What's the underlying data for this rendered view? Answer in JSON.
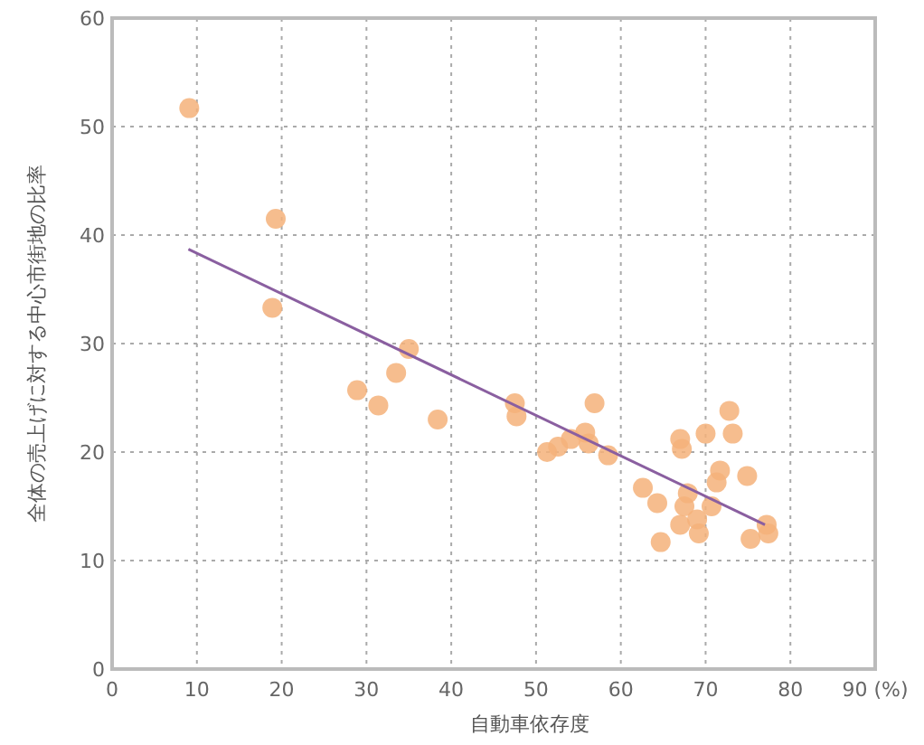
{
  "chart_data": {
    "type": "scatter",
    "xlabel": "自動車依存度",
    "ylabel": "全体の売上げに対する中心市街地の比率",
    "xlim": [
      0,
      90
    ],
    "ylim": [
      0,
      60
    ],
    "xticks": [
      0,
      10,
      20,
      30,
      40,
      50,
      60,
      70,
      80,
      {
        "value": 90,
        "label": "90 (%)"
      }
    ],
    "yticks": [
      0,
      10,
      20,
      30,
      40,
      50,
      60
    ],
    "grid": true,
    "marker": "circle",
    "series": [
      {
        "type": "scatter",
        "color": "#f5b27a",
        "x": [
          9.1,
          19.3,
          18.9,
          28.9,
          31.4,
          33.5,
          35,
          38.4,
          47.5,
          47.7,
          56.9,
          51.3,
          52.6,
          54.1,
          55.8,
          56.2,
          58.5,
          62.6,
          64.3,
          64.7,
          67,
          67.2,
          67.9,
          67.5,
          67,
          69,
          69.2,
          70,
          72.8,
          73.2,
          71.7,
          71.3,
          70.7,
          74.9,
          75.3,
          77.2,
          77.4
        ],
        "values": [
          51.7,
          41.5,
          33.3,
          25.7,
          24.3,
          27.3,
          29.5,
          23,
          24.5,
          23.3,
          24.5,
          20,
          20.5,
          21.2,
          21.8,
          20.8,
          19.7,
          16.7,
          15.3,
          11.7,
          21.2,
          20.3,
          16.2,
          15,
          13.3,
          13.8,
          12.5,
          21.7,
          23.8,
          21.7,
          18.3,
          17.2,
          15,
          17.8,
          12,
          13.3,
          12.5
        ]
      },
      {
        "type": "line",
        "color": "#8a5fa0",
        "marker": "none",
        "x": [
          9,
          77
        ],
        "values": [
          38.7,
          13.3
        ]
      }
    ]
  }
}
